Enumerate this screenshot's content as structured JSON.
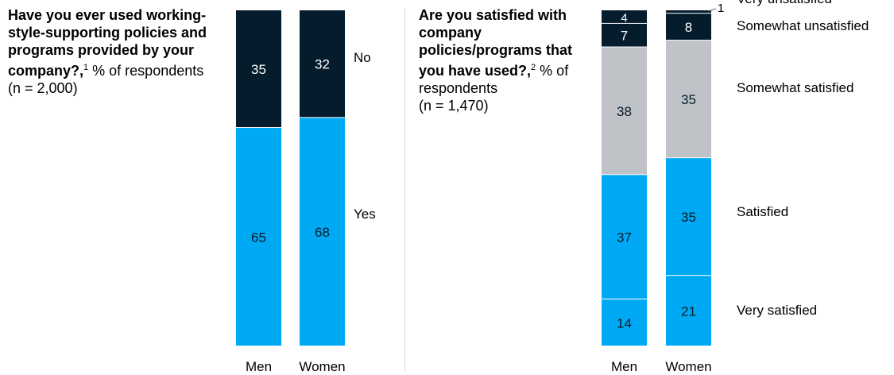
{
  "chart_data": [
    {
      "type": "bar",
      "stacked": true,
      "question": "Have you ever used working-style-supporting policies and programs provided by your company?,",
      "footnote_mark": "1",
      "unit": " % of respondents",
      "n": "(n = 2,000)",
      "categories": [
        "Men",
        "Women"
      ],
      "series": [
        {
          "name": "Yes",
          "values": [
            65,
            68
          ],
          "color": "#00a9f4"
        },
        {
          "name": "No",
          "values": [
            35,
            32
          ],
          "color": "#051c2c"
        }
      ],
      "ylim": [
        0,
        100
      ]
    },
    {
      "type": "bar",
      "stacked": true,
      "question": "Are you satisfied with company policies/programs that you have used?,",
      "footnote_mark": "2",
      "unit": " % of respondents",
      "n": "(n = 1,470)",
      "categories": [
        "Men",
        "Women"
      ],
      "series": [
        {
          "name": "Very satisfied",
          "values": [
            14,
            21
          ],
          "color": "#00a9f4"
        },
        {
          "name": "Satisfied",
          "values": [
            37,
            35
          ],
          "color": "#00a9f4"
        },
        {
          "name": "Somewhat satisfied",
          "values": [
            38,
            35
          ],
          "color": "#bfc2c7"
        },
        {
          "name": "Somewhat unsatisfied",
          "values": [
            7,
            8
          ],
          "color": "#051c2c"
        },
        {
          "name": "Very unsatisfied",
          "values": [
            4,
            1
          ],
          "color": "#051c2c"
        }
      ],
      "ylim": [
        0,
        100
      ]
    }
  ]
}
